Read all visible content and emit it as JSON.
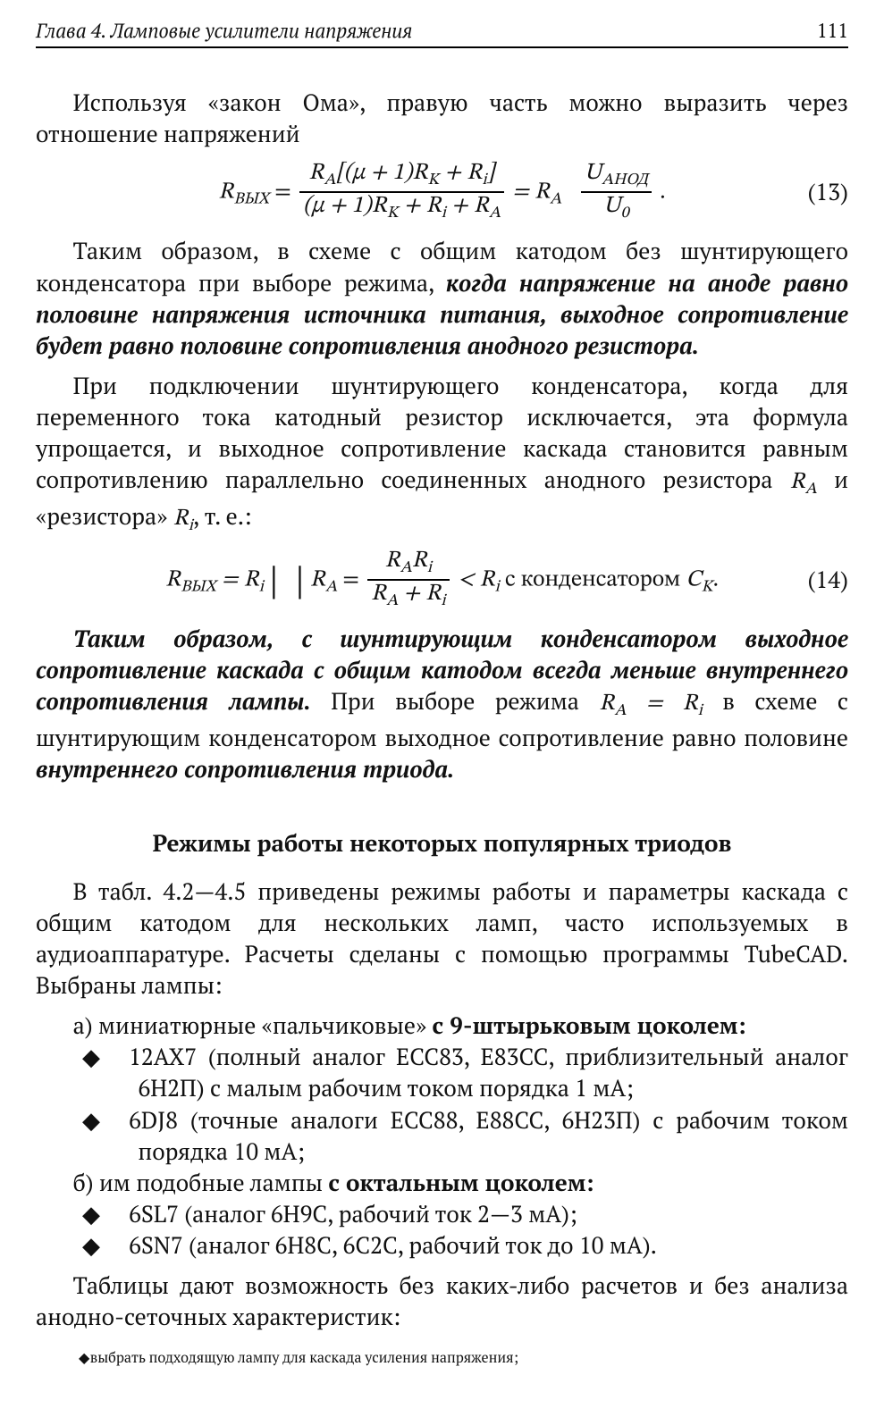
{
  "page": {
    "chapter_title": "Глава 4. Ламповые усилители напряжения",
    "number": "111"
  },
  "p1": "Используя «закон Ома», правую часть можно выразить через отношение напряжений",
  "eq13": {
    "lhs": "R",
    "lhs_sub": "ВЫХ",
    "frac1_num_a": "R",
    "frac1_num_a_sub": "A",
    "frac1_num_b": "[(μ + 1)R",
    "frac1_num_b_sub": "K",
    "frac1_num_c": " + R",
    "frac1_num_c_sub": "i",
    "frac1_num_d": "]",
    "frac1_den_a": "(μ + 1)R",
    "frac1_den_a_sub": "K",
    "frac1_den_b": " + R",
    "frac1_den_b_sub": "i",
    "frac1_den_c": " + R",
    "frac1_den_c_sub": "A",
    "mid": " = R",
    "mid_sub": "A",
    "frac2_num": "U",
    "frac2_num_sub": "АНОД",
    "frac2_den": "U",
    "frac2_den_sub": "0",
    "tail": " .",
    "num": "(13)"
  },
  "p2_a": "Таким образом, в схеме с общим катодом без шунтирующего конденсатора при выборе режима, ",
  "p2_b": "когда напряжение на аноде равно половине напряжения источника питания, выходное сопротивление будет равно половине сопротивления анодного резистора.",
  "p3_a": "При подключении шунтирующего конденсатора, когда для переменного тока катодный резистор исключается, эта формула упрощается, и выходное сопротивление каскада становится равным сопротивлению параллельно соединенных анодного резистора ",
  "p3_b": " и «резистора» ",
  "p3_c": ", т. е.:",
  "eq14": {
    "lhs": "R",
    "lhs_sub": "ВЫХ",
    "eq": " = R",
    "eq_sub": "i",
    "bar1": "|",
    "bar2": "|",
    "ra": "R",
    "ra_sub": "A",
    "frac_num_a": "R",
    "frac_num_a_sub": "A",
    "frac_num_b": "R",
    "frac_num_b_sub": "i",
    "frac_den_a": "R",
    "frac_den_a_sub": "A",
    "frac_den_b": " + R",
    "frac_den_b_sub": "i",
    "lt": " < R",
    "lt_sub": "i",
    "tail_text": " с конденсатором ",
    "tail_c": "C",
    "tail_c_sub": "K",
    "tail_dot": ".",
    "num": "(14)"
  },
  "p4_a": "Таким образом, с шунтирующим конденсатором выходное сопротивление каскада с общим катодом всегда меньше внутреннего сопротивления лампы.",
  "p4_b": " При выборе режима ",
  "p4_eq": "R_A = R_i",
  "p4_c": " в схеме с шунтирующим конденсатором выходное сопротивление равно половине ",
  "p4_d": "внутреннего сопротивления триода.",
  "subhead": "Режимы работы некоторых популярных триодов",
  "p5": "В табл. 4.2—4.5 приведены режимы работы и параметры каскада с общим катодом для нескольких ламп, часто используемых в аудиоаппаратуре. Расчеты сделаны с помощью программы TubeCAD. Выбраны лампы:",
  "list": {
    "a_label": "а) миниатюрные «пальчиковые» ",
    "a_bold": "с 9-штырьковым цоколем:",
    "a_items": [
      "12AX7 (полный аналог ECC83, E83CC, приблизительный аналог 6Н2П) с малым рабочим током порядка 1 мА;",
      "6DJ8 (точные аналоги ECC88, E88CC, 6Н23П) с рабочим током порядка 10 мА;"
    ],
    "b_label": "б) им подобные лампы ",
    "b_bold": "с октальным цоколем:",
    "b_items": [
      "6SL7 (аналог 6Н9С, рабочий ток 2—3 мА);",
      "6SN7 (аналог 6Н8С, 6С2С, рабочий ток до 10 мА)."
    ]
  },
  "p6": "Таблицы дают возможность без каких-либо расчетов и без анализа анодно-сеточных характеристик:",
  "p7": "выбрать подходящую лампу для каскада усиления напряжения;"
}
